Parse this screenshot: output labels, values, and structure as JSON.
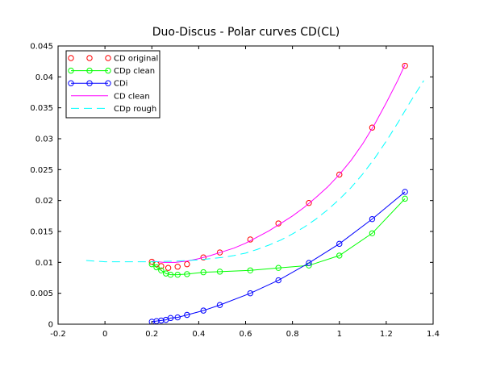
{
  "chart_data": {
    "type": "line",
    "title": "Duo-Discus - Polar curves CD(CL)",
    "xlabel": "",
    "ylabel": "",
    "xlim": [
      -0.2,
      1.4
    ],
    "ylim": [
      0,
      0.045
    ],
    "grid": false,
    "legend_position": "top-left",
    "x_ticks": [
      -0.2,
      0,
      0.2,
      0.4,
      0.6,
      0.8,
      1,
      1.2,
      1.4
    ],
    "x_tick_labels": [
      "-0.2",
      "0",
      "0.2",
      "0.4",
      "0.6",
      "0.8",
      "1",
      "1.2",
      "1.4"
    ],
    "y_ticks": [
      0,
      0.005,
      0.01,
      0.015,
      0.02,
      0.025,
      0.03,
      0.035,
      0.04,
      0.045
    ],
    "y_tick_labels": [
      "0",
      "0.005",
      "0.01",
      "0.015",
      "0.02",
      "0.025",
      "0.03",
      "0.035",
      "0.04",
      "0.045"
    ],
    "series": [
      {
        "name": "CD original",
        "color": "#ff0000",
        "style": "markers",
        "marker": "circle",
        "points": [
          [
            0.2,
            0.0101
          ],
          [
            0.22,
            0.0097
          ],
          [
            0.24,
            0.0094
          ],
          [
            0.27,
            0.0091
          ],
          [
            0.31,
            0.0093
          ],
          [
            0.35,
            0.0097
          ],
          [
            0.42,
            0.0108
          ],
          [
            0.49,
            0.0116
          ],
          [
            0.62,
            0.0137
          ],
          [
            0.74,
            0.0163
          ],
          [
            0.87,
            0.0196
          ],
          [
            1.0,
            0.0242
          ],
          [
            1.14,
            0.0318
          ],
          [
            1.28,
            0.0418
          ]
        ]
      },
      {
        "name": "CDp clean",
        "color": "#00ff00",
        "style": "line-markers",
        "marker": "circle",
        "points": [
          [
            0.2,
            0.0097
          ],
          [
            0.22,
            0.0092
          ],
          [
            0.24,
            0.0087
          ],
          [
            0.26,
            0.0082
          ],
          [
            0.28,
            0.008
          ],
          [
            0.31,
            0.008
          ],
          [
            0.35,
            0.0081
          ],
          [
            0.42,
            0.0084
          ],
          [
            0.49,
            0.0085
          ],
          [
            0.62,
            0.0087
          ],
          [
            0.74,
            0.0091
          ],
          [
            0.87,
            0.0095
          ],
          [
            1.0,
            0.0111
          ],
          [
            1.14,
            0.0147
          ],
          [
            1.28,
            0.0203
          ]
        ]
      },
      {
        "name": "CDi",
        "color": "#0000ff",
        "style": "line-markers",
        "marker": "circle",
        "points": [
          [
            0.2,
            0.0004
          ],
          [
            0.22,
            0.0005
          ],
          [
            0.24,
            0.0006
          ],
          [
            0.26,
            0.0007
          ],
          [
            0.28,
            0.001
          ],
          [
            0.31,
            0.0011
          ],
          [
            0.35,
            0.0015
          ],
          [
            0.42,
            0.0022
          ],
          [
            0.49,
            0.0031
          ],
          [
            0.62,
            0.005
          ],
          [
            0.74,
            0.0071
          ],
          [
            0.87,
            0.0099
          ],
          [
            1.0,
            0.013
          ],
          [
            1.14,
            0.017
          ],
          [
            1.28,
            0.0214
          ]
        ]
      },
      {
        "name": "CD clean",
        "color": "#ff00ff",
        "style": "line",
        "points": [
          [
            0.2,
            0.0102
          ],
          [
            0.25,
            0.01
          ],
          [
            0.3,
            0.01
          ],
          [
            0.35,
            0.0102
          ],
          [
            0.4,
            0.0106
          ],
          [
            0.45,
            0.0111
          ],
          [
            0.5,
            0.0117
          ],
          [
            0.55,
            0.0123
          ],
          [
            0.6,
            0.0131
          ],
          [
            0.65,
            0.0141
          ],
          [
            0.7,
            0.0151
          ],
          [
            0.75,
            0.0163
          ],
          [
            0.8,
            0.0175
          ],
          [
            0.85,
            0.0189
          ],
          [
            0.9,
            0.0205
          ],
          [
            0.95,
            0.0222
          ],
          [
            1.0,
            0.0242
          ],
          [
            1.05,
            0.0265
          ],
          [
            1.1,
            0.0292
          ],
          [
            1.15,
            0.0323
          ],
          [
            1.2,
            0.0358
          ],
          [
            1.25,
            0.0395
          ],
          [
            1.28,
            0.042
          ]
        ]
      },
      {
        "name": "CDp rough",
        "color": "#00ffff",
        "style": "dashed",
        "points": [
          [
            -0.08,
            0.0103
          ],
          [
            0.0,
            0.0101
          ],
          [
            0.1,
            0.0101
          ],
          [
            0.2,
            0.0101
          ],
          [
            0.3,
            0.0102
          ],
          [
            0.4,
            0.0104
          ],
          [
            0.5,
            0.0108
          ],
          [
            0.55,
            0.0111
          ],
          [
            0.6,
            0.0115
          ],
          [
            0.65,
            0.0121
          ],
          [
            0.7,
            0.0128
          ],
          [
            0.75,
            0.0136
          ],
          [
            0.8,
            0.0146
          ],
          [
            0.85,
            0.0157
          ],
          [
            0.9,
            0.017
          ],
          [
            0.95,
            0.0185
          ],
          [
            1.0,
            0.0202
          ],
          [
            1.05,
            0.0221
          ],
          [
            1.1,
            0.0243
          ],
          [
            1.15,
            0.0268
          ],
          [
            1.2,
            0.0296
          ],
          [
            1.25,
            0.0326
          ],
          [
            1.3,
            0.0358
          ],
          [
            1.36,
            0.0394
          ]
        ]
      }
    ]
  }
}
